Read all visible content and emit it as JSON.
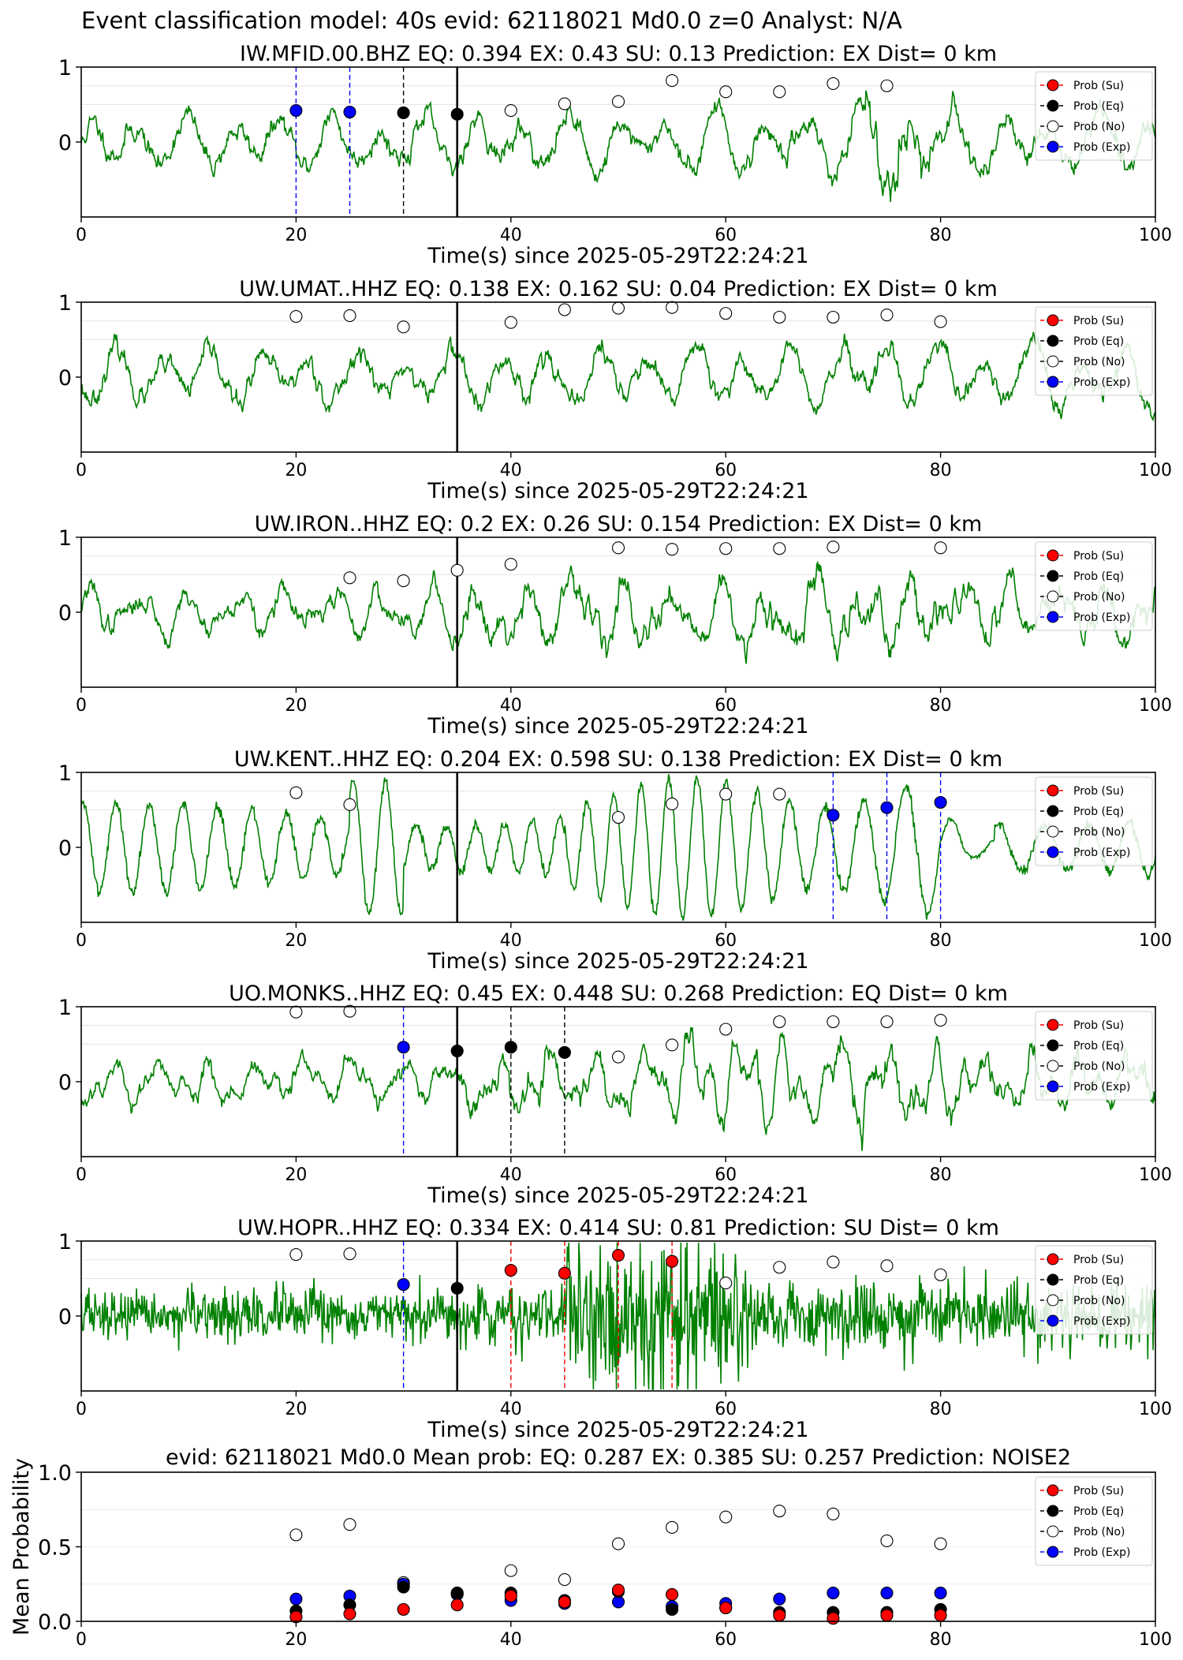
{
  "figure_title": "Event classification model: 40s evid: 62118021 Md0.0 z=0 Analyst: N/A",
  "legend_labels": [
    "Prob (Su)",
    "Prob (Eq)",
    "Prob (No)",
    "Prob (Exp)"
  ],
  "colors": {
    "waveform": "#008000",
    "su": "#ff0000",
    "eq": "#000000",
    "no": "#ffffff",
    "exp": "#0000ff"
  },
  "chart_data": [
    {
      "type": "line",
      "title": "IW.MFID.00.BHZ   EQ: 0.394  EX: 0.43  SU: 0.13   Prediction: EX    Dist= 0 km",
      "xlabel": "Time(s) since 2025-05-29T22:24:21",
      "ylabel": "",
      "xlim": [
        0,
        100
      ],
      "ylim": [
        -1,
        1
      ],
      "x_ticks": [
        "0",
        "20",
        "40",
        "60",
        "80",
        "100"
      ],
      "y_ticks": [
        "0",
        "1"
      ],
      "arrival_time": 35,
      "waveform": {
        "character": "low-frequency",
        "seed": 11
      },
      "vlines": [
        {
          "x": 20,
          "color": "exp"
        },
        {
          "x": 25,
          "color": "exp"
        },
        {
          "x": 30,
          "color": "eq"
        }
      ],
      "points": [
        {
          "x": 20,
          "y": 0.42,
          "cls": "exp"
        },
        {
          "x": 25,
          "y": 0.4,
          "cls": "exp"
        },
        {
          "x": 30,
          "y": 0.39,
          "cls": "eq"
        },
        {
          "x": 35,
          "y": 0.37,
          "cls": "eq"
        },
        {
          "x": 40,
          "y": 0.42,
          "cls": "no"
        },
        {
          "x": 45,
          "y": 0.51,
          "cls": "no"
        },
        {
          "x": 50,
          "y": 0.54,
          "cls": "no"
        },
        {
          "x": 55,
          "y": 0.82,
          "cls": "no"
        },
        {
          "x": 60,
          "y": 0.67,
          "cls": "no"
        },
        {
          "x": 65,
          "y": 0.67,
          "cls": "no"
        },
        {
          "x": 70,
          "y": 0.78,
          "cls": "no"
        },
        {
          "x": 75,
          "y": 0.75,
          "cls": "no"
        }
      ]
    },
    {
      "type": "line",
      "title": "UW.UMAT..HHZ   EQ: 0.138  EX: 0.162  SU: 0.04   Prediction: EX    Dist= 0 km",
      "xlabel": "Time(s) since 2025-05-29T22:24:21",
      "ylabel": "",
      "xlim": [
        0,
        100
      ],
      "ylim": [
        -1,
        1
      ],
      "x_ticks": [
        "0",
        "20",
        "40",
        "60",
        "80",
        "100"
      ],
      "y_ticks": [
        "0",
        "1"
      ],
      "arrival_time": 35,
      "waveform": {
        "character": "low-frequency",
        "seed": 23
      },
      "vlines": [],
      "points": [
        {
          "x": 20,
          "y": 0.81,
          "cls": "no"
        },
        {
          "x": 25,
          "y": 0.82,
          "cls": "no"
        },
        {
          "x": 30,
          "y": 0.67,
          "cls": "no"
        },
        {
          "x": 40,
          "y": 0.73,
          "cls": "no"
        },
        {
          "x": 45,
          "y": 0.9,
          "cls": "no"
        },
        {
          "x": 50,
          "y": 0.92,
          "cls": "no"
        },
        {
          "x": 55,
          "y": 0.93,
          "cls": "no"
        },
        {
          "x": 60,
          "y": 0.85,
          "cls": "no"
        },
        {
          "x": 65,
          "y": 0.8,
          "cls": "no"
        },
        {
          "x": 70,
          "y": 0.8,
          "cls": "no"
        },
        {
          "x": 75,
          "y": 0.83,
          "cls": "no"
        },
        {
          "x": 80,
          "y": 0.74,
          "cls": "no"
        }
      ]
    },
    {
      "type": "line",
      "title": "UW.IRON..HHZ   EQ: 0.2  EX: 0.26  SU: 0.154   Prediction: EX    Dist= 0 km",
      "xlabel": "Time(s) since 2025-05-29T22:24:21",
      "ylabel": "",
      "xlim": [
        0,
        100
      ],
      "ylim": [
        -1,
        1
      ],
      "x_ticks": [
        "0",
        "20",
        "40",
        "60",
        "80",
        "100"
      ],
      "y_ticks": [
        "0",
        "1"
      ],
      "arrival_time": 35,
      "waveform": {
        "character": "mixed",
        "seed": 37
      },
      "vlines": [],
      "points": [
        {
          "x": 25,
          "y": 0.46,
          "cls": "no"
        },
        {
          "x": 30,
          "y": 0.42,
          "cls": "no"
        },
        {
          "x": 35,
          "y": 0.56,
          "cls": "no"
        },
        {
          "x": 40,
          "y": 0.64,
          "cls": "no"
        },
        {
          "x": 50,
          "y": 0.86,
          "cls": "no"
        },
        {
          "x": 55,
          "y": 0.84,
          "cls": "no"
        },
        {
          "x": 60,
          "y": 0.85,
          "cls": "no"
        },
        {
          "x": 65,
          "y": 0.85,
          "cls": "no"
        },
        {
          "x": 70,
          "y": 0.87,
          "cls": "no"
        },
        {
          "x": 80,
          "y": 0.86,
          "cls": "no"
        }
      ]
    },
    {
      "type": "line",
      "title": "UW.KENT..HHZ   EQ: 0.204  EX: 0.598  SU: 0.138   Prediction: EX    Dist= 0 km",
      "xlabel": "Time(s) since 2025-05-29T22:24:21",
      "ylabel": "",
      "xlim": [
        0,
        100
      ],
      "ylim": [
        -1,
        1
      ],
      "x_ticks": [
        "0",
        "20",
        "40",
        "60",
        "80",
        "100"
      ],
      "y_ticks": [
        "0",
        "1"
      ],
      "arrival_time": 35,
      "waveform": {
        "character": "oscillatory",
        "seed": 41
      },
      "vlines": [
        {
          "x": 70,
          "color": "exp"
        },
        {
          "x": 75,
          "color": "exp"
        },
        {
          "x": 80,
          "color": "exp"
        }
      ],
      "points": [
        {
          "x": 20,
          "y": 0.73,
          "cls": "no"
        },
        {
          "x": 25,
          "y": 0.57,
          "cls": "no"
        },
        {
          "x": 50,
          "y": 0.4,
          "cls": "no"
        },
        {
          "x": 55,
          "y": 0.58,
          "cls": "no"
        },
        {
          "x": 60,
          "y": 0.71,
          "cls": "no"
        },
        {
          "x": 65,
          "y": 0.71,
          "cls": "no"
        },
        {
          "x": 70,
          "y": 0.43,
          "cls": "exp"
        },
        {
          "x": 75,
          "y": 0.53,
          "cls": "exp"
        },
        {
          "x": 80,
          "y": 0.6,
          "cls": "exp"
        }
      ]
    },
    {
      "type": "line",
      "title": "UO.MONKS..HHZ   EQ: 0.45  EX: 0.448  SU: 0.268   Prediction: EQ    Dist= 0 km",
      "xlabel": "Time(s) since 2025-05-29T22:24:21",
      "ylabel": "",
      "xlim": [
        0,
        100
      ],
      "ylim": [
        -1,
        1
      ],
      "x_ticks": [
        "0",
        "20",
        "40",
        "60",
        "80",
        "100"
      ],
      "y_ticks": [
        "0",
        "1"
      ],
      "arrival_time": 35,
      "waveform": {
        "character": "mixed",
        "seed": 53
      },
      "vlines": [
        {
          "x": 30,
          "color": "exp"
        },
        {
          "x": 40,
          "color": "eq"
        },
        {
          "x": 45,
          "color": "eq"
        }
      ],
      "points": [
        {
          "x": 20,
          "y": 0.93,
          "cls": "no"
        },
        {
          "x": 25,
          "y": 0.94,
          "cls": "no"
        },
        {
          "x": 30,
          "y": 0.46,
          "cls": "exp"
        },
        {
          "x": 35,
          "y": 0.41,
          "cls": "eq"
        },
        {
          "x": 40,
          "y": 0.46,
          "cls": "eq"
        },
        {
          "x": 45,
          "y": 0.39,
          "cls": "eq"
        },
        {
          "x": 50,
          "y": 0.33,
          "cls": "no"
        },
        {
          "x": 55,
          "y": 0.49,
          "cls": "no"
        },
        {
          "x": 60,
          "y": 0.7,
          "cls": "no"
        },
        {
          "x": 65,
          "y": 0.8,
          "cls": "no"
        },
        {
          "x": 70,
          "y": 0.8,
          "cls": "no"
        },
        {
          "x": 75,
          "y": 0.8,
          "cls": "no"
        },
        {
          "x": 80,
          "y": 0.82,
          "cls": "no"
        }
      ]
    },
    {
      "type": "line",
      "title": "UW.HOPR..HHZ   EQ: 0.334  EX: 0.414  SU: 0.81   Prediction: SU    Dist= 0 km",
      "xlabel": "Time(s) since 2025-05-29T22:24:21",
      "ylabel": "",
      "xlim": [
        0,
        100
      ],
      "ylim": [
        -1,
        1
      ],
      "x_ticks": [
        "0",
        "20",
        "40",
        "60",
        "80",
        "100"
      ],
      "y_ticks": [
        "0",
        "1"
      ],
      "arrival_time": 35,
      "waveform": {
        "character": "noisy-burst",
        "seed": 67
      },
      "vlines": [
        {
          "x": 30,
          "color": "exp"
        },
        {
          "x": 40,
          "color": "su"
        },
        {
          "x": 45,
          "color": "su"
        },
        {
          "x": 50,
          "color": "su"
        },
        {
          "x": 55,
          "color": "su"
        }
      ],
      "points": [
        {
          "x": 20,
          "y": 0.82,
          "cls": "no"
        },
        {
          "x": 25,
          "y": 0.83,
          "cls": "no"
        },
        {
          "x": 30,
          "y": 0.42,
          "cls": "exp"
        },
        {
          "x": 35,
          "y": 0.37,
          "cls": "eq"
        },
        {
          "x": 40,
          "y": 0.61,
          "cls": "su"
        },
        {
          "x": 45,
          "y": 0.57,
          "cls": "su"
        },
        {
          "x": 50,
          "y": 0.81,
          "cls": "su"
        },
        {
          "x": 55,
          "y": 0.73,
          "cls": "su"
        },
        {
          "x": 60,
          "y": 0.44,
          "cls": "no"
        },
        {
          "x": 65,
          "y": 0.65,
          "cls": "no"
        },
        {
          "x": 70,
          "y": 0.72,
          "cls": "no"
        },
        {
          "x": 75,
          "y": 0.67,
          "cls": "no"
        },
        {
          "x": 80,
          "y": 0.55,
          "cls": "no"
        }
      ]
    },
    {
      "type": "scatter",
      "title": "evid: 62118021  Md0.0   Mean prob:   EQ: 0.287  EX: 0.385  SU: 0.257   Prediction: NOISE2",
      "xlabel": "",
      "ylabel": "Mean Probability",
      "xlim": [
        0,
        100
      ],
      "ylim": [
        0,
        1
      ],
      "x_ticks": [
        "0",
        "20",
        "40",
        "60",
        "80",
        "100"
      ],
      "y_ticks": [
        "0.0",
        "0.5",
        "1.0"
      ],
      "x": [
        20,
        25,
        30,
        35,
        40,
        45,
        50,
        55,
        60,
        65,
        70,
        75,
        80
      ],
      "series": [
        {
          "name": "Prob (No)",
          "cls": "no",
          "values": [
            0.58,
            0.65,
            0.26,
            0.19,
            0.34,
            0.28,
            0.52,
            0.63,
            0.7,
            0.74,
            0.72,
            0.54,
            0.52
          ]
        },
        {
          "name": "Prob (Exp)",
          "cls": "exp",
          "values": [
            0.15,
            0.17,
            0.25,
            0.18,
            0.14,
            0.12,
            0.13,
            0.1,
            0.12,
            0.15,
            0.19,
            0.19,
            0.19
          ]
        },
        {
          "name": "Prob (Eq)",
          "cls": "eq",
          "values": [
            0.07,
            0.11,
            0.23,
            0.19,
            0.19,
            0.14,
            0.2,
            0.08,
            0.09,
            0.06,
            0.06,
            0.06,
            0.08
          ]
        },
        {
          "name": "Prob (Su)",
          "cls": "su",
          "values": [
            0.03,
            0.05,
            0.08,
            0.11,
            0.17,
            0.13,
            0.21,
            0.18,
            0.09,
            0.04,
            0.02,
            0.04,
            0.04
          ]
        }
      ]
    }
  ]
}
